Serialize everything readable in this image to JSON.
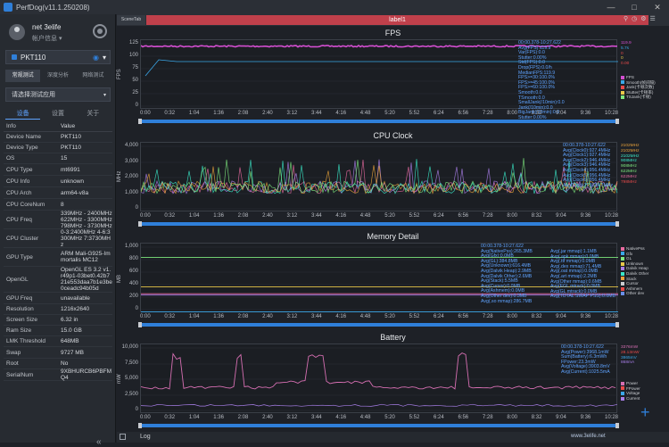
{
  "app": {
    "title": "PerfDog(v11.1.250208)",
    "min": "—",
    "max": "□",
    "close": "✕"
  },
  "profile": {
    "name": "net 3elife",
    "sub": "帐户信息 ▾"
  },
  "device": {
    "name": "PKT110",
    "wifi": "wifi-icon",
    "caret": "▾"
  },
  "mode_tabs": [
    "常规测试",
    "深度分析",
    "网络测试"
  ],
  "app_select": {
    "placeholder": "请选择测试应用",
    "caret": "▾"
  },
  "sub_tabs": [
    "设备",
    "设置",
    "关于"
  ],
  "info": {
    "header": [
      "Info",
      "Value"
    ],
    "rows": [
      [
        "Device Name",
        "PKT110"
      ],
      [
        "Device Type",
        "PKT110"
      ],
      [
        "OS",
        "15"
      ],
      [
        "CPU Type",
        "mt6991"
      ],
      [
        "CPU Info",
        "unknown"
      ],
      [
        "CPU Arch",
        "arm64-v8a"
      ],
      [
        "CPU CoreNum",
        "8"
      ],
      [
        "CPU Freq",
        "339MHz - 2400MHz 622MHz - 3300MHz 798MHz - 3730MHz"
      ],
      [
        "CPU Cluster",
        "0-3:2400MHz 4-6:3300MHz 7:3730MHz"
      ],
      [
        "GPU Type",
        "ARM Mali-G925-Immortalis MC12"
      ],
      [
        "OpenGL",
        "OpenGL ES 3.2 v1.r49p1-03bet0.42b721e553daa7b1e3be0ceadc94b05d"
      ],
      [
        "GPU Freq",
        "unavailable"
      ],
      [
        "Resolution",
        "1216x2640"
      ],
      [
        "Screen Size",
        "6.32 in"
      ],
      [
        "Ram Size",
        "15.0 GB"
      ],
      [
        "LMK Threshold",
        "648MB"
      ],
      [
        "Swap",
        "9727 MB"
      ],
      [
        "Root",
        "No"
      ],
      [
        "SerialNum",
        "9XBHURCB6PBFMQ4"
      ]
    ]
  },
  "topbar": {
    "scene": "SceneTab",
    "label": "label1"
  },
  "xticks": [
    "0:00",
    "0:32",
    "1:04",
    "1:36",
    "2:08",
    "2:40",
    "3:12",
    "3:44",
    "4:16",
    "4:48",
    "5:20",
    "5:52",
    "6:24",
    "6:56",
    "7:28",
    "8:00",
    "8:32",
    "9:04",
    "9:36",
    "10:28"
  ],
  "fps": {
    "title": "FPS",
    "ylabel": "FPS",
    "yticks": [
      "125",
      "100",
      "75",
      "50",
      "25",
      "0"
    ],
    "stats": [
      "00:00.378-10:27.622",
      "Avg(FPS):119.9",
      "Var(FPS):0.0",
      "Stutter:0.00%",
      "Std(FPS):0.0",
      "Drop(FPS):0.0/h",
      "MedianFPS:119.9",
      "FPS>=30:100.0%",
      "FPS>=45:100.0%",
      "FPS>=60:100.0%",
      "Smooth:0.0",
      "TSmooth:0.0",
      "SmallJank(/10min):0.0",
      "Jank(/10min):0.0",
      "BigJank(/10min):0.0",
      "Stutter:0.00%"
    ],
    "legend": [
      "FPS",
      "Smooth(帧间隔)",
      "Jank(卡顿次数)",
      "Stutter(卡顿率)",
      "TSJank(卡顿)"
    ],
    "right": [
      "119.9",
      "5.7s",
      "0",
      "0",
      "0.00"
    ]
  },
  "cpu": {
    "title": "CPU Clock",
    "ylabel": "MHz",
    "yticks": [
      "4,000",
      "3,000",
      "2,000",
      "1,000",
      "0"
    ],
    "stats": [
      "00:00.378-10:27.622",
      "Avg(Clock0):927.4MHz",
      "Avg(Clock1):927.4MHz",
      "Avg(Clock2):946.4MHz",
      "Avg(Clock3):946.4MHz",
      "Avg(Clock4):956.4MHz",
      "Avg(Clock5):956.4MHz",
      "Avg(Clock6):956.4MHz",
      "Avg(Clock7):1034.7MHz"
    ],
    "right": [
      "2102MHz",
      "2102MHz",
      "2102MHz",
      "908MHz",
      "908MHz",
      "622MHz",
      "622MHz",
      "798MHz"
    ]
  },
  "memory": {
    "title": "Memory Detail",
    "ylabel": "MB",
    "yticks": [
      "1,000",
      "800",
      "600",
      "400",
      "200",
      "0"
    ],
    "stats": [
      "00:00.378-10:27.622",
      "Avg(NativePss):265.3MB",
      "Avg(Gfx):0.0MB",
      "Avg(GL):384.8MB",
      "Avg(Unknown):616.4MB",
      "Avg(Dalvik Heap):2.9MB",
      "Avg(Dalvik Other):2.6MB",
      "Avg(Stack):5.5MB",
      "Avg(Cursor):0.0MB",
      "Avg(Ashmem):0.0MB",
      "Avg(Other dev):0.3MB",
      "Avg(.so mmap):286.7MB"
    ],
    "stats2": [
      "Avg(.jar mmap):1.1MB",
      "Avg(.apk mmap):0.0MB",
      "Avg(.ttf mmap):0.0MB",
      "Avg(.dex mmap):71.4MB",
      "Avg(.oat mmap):0.0MB",
      "Avg(.art mmap):2.2MB",
      "Avg(Other mmap):0.6MB",
      "Avg(EGL mtrack):0.0MB",
      "Avg(GL mtrack):0.0MB",
      "Avg(TOTAL SWAP PSS):0.0MB"
    ],
    "legend": [
      "NativePss",
      "Gfx",
      "GL",
      "Unknown",
      "Dalvik Heap",
      "Dalvik Other",
      "Stack",
      "Cursor",
      "Ashmem",
      "Other dev"
    ]
  },
  "battery": {
    "title": "Battery",
    "ylabel": "mW",
    "yticks": [
      "10,000",
      "7,500",
      "5,000",
      "2,500",
      "0"
    ],
    "stats": [
      "00:00.378-10:27.622",
      "Avg(Power):3968.1mW",
      "Sum(Battery):6.3mWh",
      "FPower:23.3mW",
      "Avg(Voltage):3903.8mV",
      "Avg(Current):1025.5mA"
    ],
    "legend": [
      "Power",
      "FPower",
      "Voltage",
      "Current"
    ],
    "right": [
      "3376mW",
      "28.13mW",
      "3865mV",
      "868mA"
    ]
  },
  "colors": {
    "accent": "#2f7fd9",
    "fps": "#d44fd1",
    "label": "#c0404b",
    "battery": "#d66fb2"
  },
  "bottom": {
    "log": "Log",
    "plus": "+"
  },
  "watermark": "www.3elife.net"
}
